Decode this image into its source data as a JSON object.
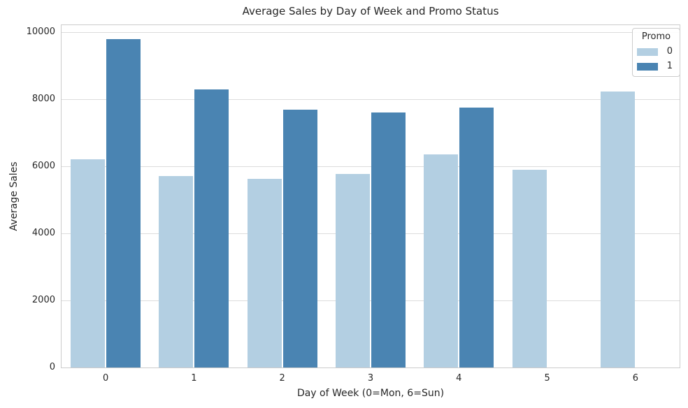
{
  "figure": {
    "background": "#ffffff",
    "grid_color": "#dcdcdc",
    "spine_color": "#cccccc",
    "text_color": "#262626"
  },
  "chart_data": {
    "type": "bar",
    "title": "Average Sales by Day of Week and Promo Status",
    "xlabel": "Day of Week (0=Mon, 6=Sun)",
    "ylabel": "Average Sales",
    "categories": [
      "0",
      "1",
      "2",
      "3",
      "4",
      "5",
      "6"
    ],
    "yticks": [
      0,
      2000,
      4000,
      6000,
      8000,
      10000
    ],
    "ylim": [
      0,
      10210
    ],
    "grid": true,
    "legend": {
      "title": "Promo",
      "position": "upper right",
      "entries": [
        {
          "label": "0",
          "color": "#b3cfe2"
        },
        {
          "label": "1",
          "color": "#4a84b2"
        }
      ]
    },
    "series": [
      {
        "name": "0",
        "color": "#b3cfe2",
        "values": [
          6220,
          5720,
          5620,
          5770,
          6350,
          5900,
          8230
        ]
      },
      {
        "name": "1",
        "color": "#4a84b2",
        "values": [
          9790,
          8290,
          7700,
          7610,
          7760,
          null,
          null
        ]
      }
    ]
  }
}
